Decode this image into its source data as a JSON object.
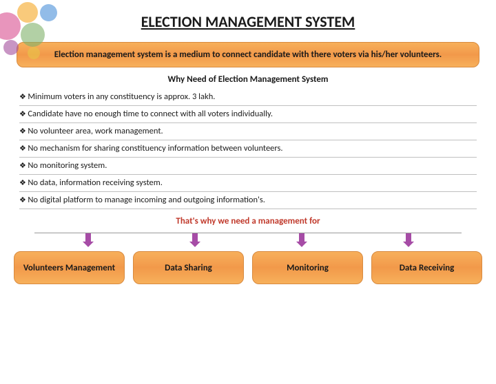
{
  "title": "ELECTION MANAGEMENT SYSTEM",
  "intro": "Election management system is a medium to connect candidate with there voters via his/her volunteers.",
  "why_heading": "Why Need of Election Management System",
  "bullets": [
    "Minimum voters in any constituency is approx. 3 lakh.",
    "Candidate have no enough time to connect with all voters individually.",
    "No volunteer area, work management.",
    "No mechanism for sharing constituency information between volunteers.",
    "No monitoring system.",
    "No data, information receiving system.",
    "No digital platform to manage incoming and outgoing information's."
  ],
  "thats_why": "That's why we need a management for",
  "boxes": [
    "Volunteers Management",
    "Data Sharing",
    "Monitoring",
    "Data Receiving"
  ],
  "colors": {
    "box_gradient_top": "#f7b05b",
    "box_gradient_mid": "#f2994a",
    "box_border": "#d88a3f",
    "thats_why": "#c0392b",
    "arrow": "#a64ca6",
    "divider": "#bfbfbf",
    "text": "#1a1a1a"
  }
}
